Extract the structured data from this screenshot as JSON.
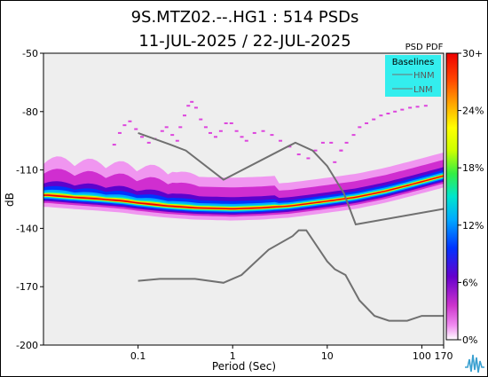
{
  "chart_data": {
    "type": "heatmap",
    "title": "9S.MTZ02.--.HG1 : 514 PSDs",
    "subtitle": "11-JUL-2025 / 22-JUL-2025",
    "xlabel": "Period (Sec)",
    "ylabel": "dB",
    "x_scale": "log",
    "xlim": [
      0.01,
      170
    ],
    "ylim": [
      -200,
      -50
    ],
    "x_ticks": [
      {
        "value": 0.1,
        "label": "0.1"
      },
      {
        "value": 1,
        "label": "1"
      },
      {
        "value": 10,
        "label": "10"
      },
      {
        "value": 100,
        "label": "100"
      },
      {
        "value": 170,
        "label": "170"
      }
    ],
    "y_ticks": [
      {
        "value": -50,
        "label": "-50"
      },
      {
        "value": -80,
        "label": "-80"
      },
      {
        "value": -110,
        "label": "-110"
      },
      {
        "value": -140,
        "label": "-140"
      },
      {
        "value": -170,
        "label": "-170"
      },
      {
        "value": -200,
        "label": "-200"
      }
    ],
    "colorbar": {
      "title": "PSD PDF",
      "ticks": [
        "30+",
        "24%",
        "18%",
        "12%",
        "6%",
        "0%"
      ],
      "range": [
        0,
        30
      ],
      "colors": [
        "#ffffff",
        "#f08cf0",
        "#cc33cc",
        "#6600cc",
        "#0033ff",
        "#00aaff",
        "#00e5cc",
        "#33ee44",
        "#ccff00",
        "#ffff00",
        "#ffaa00",
        "#ff4400",
        "#ee0000"
      ]
    },
    "legend": {
      "title": "Baselines",
      "items": [
        "HNM",
        "LNM"
      ],
      "placement": "top-right",
      "background": "#33eeee"
    },
    "baselines": [
      {
        "name": "HNM",
        "color": "#707070",
        "points": [
          [
            0.1,
            -91
          ],
          [
            0.22,
            -97
          ],
          [
            0.32,
            -100
          ],
          [
            0.8,
            -115
          ],
          [
            3.8,
            -98
          ],
          [
            4.6,
            -96
          ],
          [
            7,
            -100
          ],
          [
            10,
            -108
          ],
          [
            15,
            -122
          ],
          [
            20,
            -138
          ],
          [
            170,
            -130
          ]
        ]
      },
      {
        "name": "LNM",
        "color": "#707070",
        "points": [
          [
            0.1,
            -167
          ],
          [
            0.17,
            -166
          ],
          [
            0.4,
            -166
          ],
          [
            0.8,
            -168
          ],
          [
            1.24,
            -164
          ],
          [
            2.4,
            -151
          ],
          [
            4.3,
            -144
          ],
          [
            5,
            -141
          ],
          [
            6,
            -141
          ],
          [
            10,
            -157
          ],
          [
            12,
            -161
          ],
          [
            15.6,
            -164
          ],
          [
            21.9,
            -177
          ],
          [
            31.6,
            -185
          ],
          [
            45,
            -187.5
          ],
          [
            70,
            -187.5
          ],
          [
            100,
            -185
          ],
          [
            170,
            -185
          ]
        ]
      }
    ],
    "mode_curve": {
      "color": "#ee2200",
      "points": [
        [
          0.011,
          -123
        ],
        [
          0.02,
          -124
        ],
        [
          0.04,
          -125
        ],
        [
          0.07,
          -126
        ],
        [
          0.1,
          -127
        ],
        [
          0.2,
          -128.5
        ],
        [
          0.4,
          -129.5
        ],
        [
          1,
          -130
        ],
        [
          2,
          -129.5
        ],
        [
          4,
          -128.5
        ],
        [
          7,
          -127
        ],
        [
          10,
          -126
        ],
        [
          20,
          -124
        ],
        [
          40,
          -121
        ],
        [
          70,
          -118
        ],
        [
          100,
          -116
        ],
        [
          170,
          -113
        ]
      ]
    },
    "scatter_traces": [
      {
        "points": [
          [
            0.056,
            -97
          ],
          [
            0.064,
            -91
          ],
          [
            0.072,
            -87
          ],
          [
            0.082,
            -85
          ],
          [
            0.095,
            -89
          ],
          [
            0.11,
            -93
          ],
          [
            0.13,
            -96
          ],
          [
            0.15,
            -94
          ],
          [
            0.18,
            -90
          ],
          [
            0.2,
            -88
          ],
          [
            0.23,
            -92
          ],
          [
            0.26,
            -95
          ]
        ]
      },
      {
        "points": [
          [
            0.28,
            -88
          ],
          [
            0.31,
            -82
          ],
          [
            0.34,
            -77
          ],
          [
            0.37,
            -75
          ],
          [
            0.41,
            -78
          ],
          [
            0.46,
            -84
          ],
          [
            0.52,
            -88
          ],
          [
            0.58,
            -91
          ],
          [
            0.66,
            -93
          ],
          [
            0.75,
            -90
          ],
          [
            0.85,
            -86
          ],
          [
            0.97,
            -86
          ],
          [
            1.1,
            -90
          ],
          [
            1.25,
            -93
          ]
        ]
      },
      {
        "points": [
          [
            1.4,
            -95
          ],
          [
            1.7,
            -91
          ],
          [
            2.1,
            -90
          ],
          [
            2.6,
            -92
          ],
          [
            3.2,
            -95
          ],
          [
            4,
            -98
          ],
          [
            5,
            -102
          ],
          [
            6.3,
            -104
          ],
          [
            7.5,
            -100
          ],
          [
            9,
            -96
          ],
          [
            11,
            -96
          ],
          [
            14,
            -100
          ]
        ]
      },
      {
        "points": [
          [
            12,
            -106
          ],
          [
            14,
            -100
          ],
          [
            16,
            -96
          ],
          [
            19,
            -92
          ],
          [
            22,
            -88
          ],
          [
            26,
            -86
          ],
          [
            31,
            -84
          ],
          [
            37,
            -82
          ],
          [
            44,
            -81
          ],
          [
            52,
            -80
          ],
          [
            62,
            -79
          ],
          [
            75,
            -78
          ],
          [
            90,
            -77.5
          ],
          [
            110,
            -77
          ]
        ]
      }
    ]
  }
}
